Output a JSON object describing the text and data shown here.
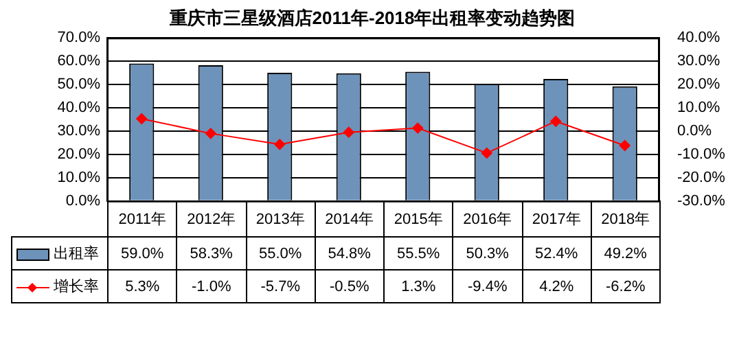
{
  "chart_data": {
    "type": "bar",
    "title": "重庆市三星级酒店2011年-2018年出租率变动趋势图",
    "categories": [
      "2011年",
      "2012年",
      "2013年",
      "2014年",
      "2015年",
      "2016年",
      "2017年",
      "2018年"
    ],
    "series": [
      {
        "name": "出租率",
        "color": "#6d93bb",
        "values": [
          59.0,
          58.3,
          55.0,
          54.8,
          55.5,
          50.3,
          52.4,
          49.2
        ],
        "value_labels": [
          "59.0%",
          "58.3%",
          "55.0%",
          "54.8%",
          "55.5%",
          "50.3%",
          "52.4%",
          "49.2%"
        ]
      },
      {
        "name": "增长率",
        "type": "line",
        "axis": "y2",
        "color": "#ff0000",
        "marker": "diamond",
        "values": [
          5.3,
          -1.0,
          -5.7,
          -0.5,
          1.3,
          -9.4,
          4.2,
          -6.2
        ],
        "value_labels": [
          "5.3%",
          "-1.0%",
          "-5.7%",
          "-0.5%",
          "1.3%",
          "-9.4%",
          "4.2%",
          "-6.2%"
        ]
      }
    ],
    "ylim": [
      0,
      70
    ],
    "yticks": [
      {
        "value": 0,
        "label": "0.0%"
      },
      {
        "value": 10,
        "label": "10.0%"
      },
      {
        "value": 20,
        "label": "20.0%"
      },
      {
        "value": 30,
        "label": "30.0%"
      },
      {
        "value": 40,
        "label": "40.0%"
      },
      {
        "value": 50,
        "label": "50.0%"
      },
      {
        "value": 60,
        "label": "60.0%"
      },
      {
        "value": 70,
        "label": "70.0%"
      }
    ],
    "y2lim": [
      -30,
      40
    ],
    "y2ticks": [
      {
        "value": -30,
        "label": "-30.0%"
      },
      {
        "value": -20,
        "label": "-20.0%"
      },
      {
        "value": -10,
        "label": "-10.0%"
      },
      {
        "value": 0,
        "label": "0.0%"
      },
      {
        "value": 10,
        "label": "10.0%"
      },
      {
        "value": 20,
        "label": "20.0%"
      },
      {
        "value": 30,
        "label": "30.0%"
      },
      {
        "value": 40,
        "label": "40.0%"
      }
    ],
    "grid": "y",
    "legend": "bottom",
    "data_labels": true
  }
}
